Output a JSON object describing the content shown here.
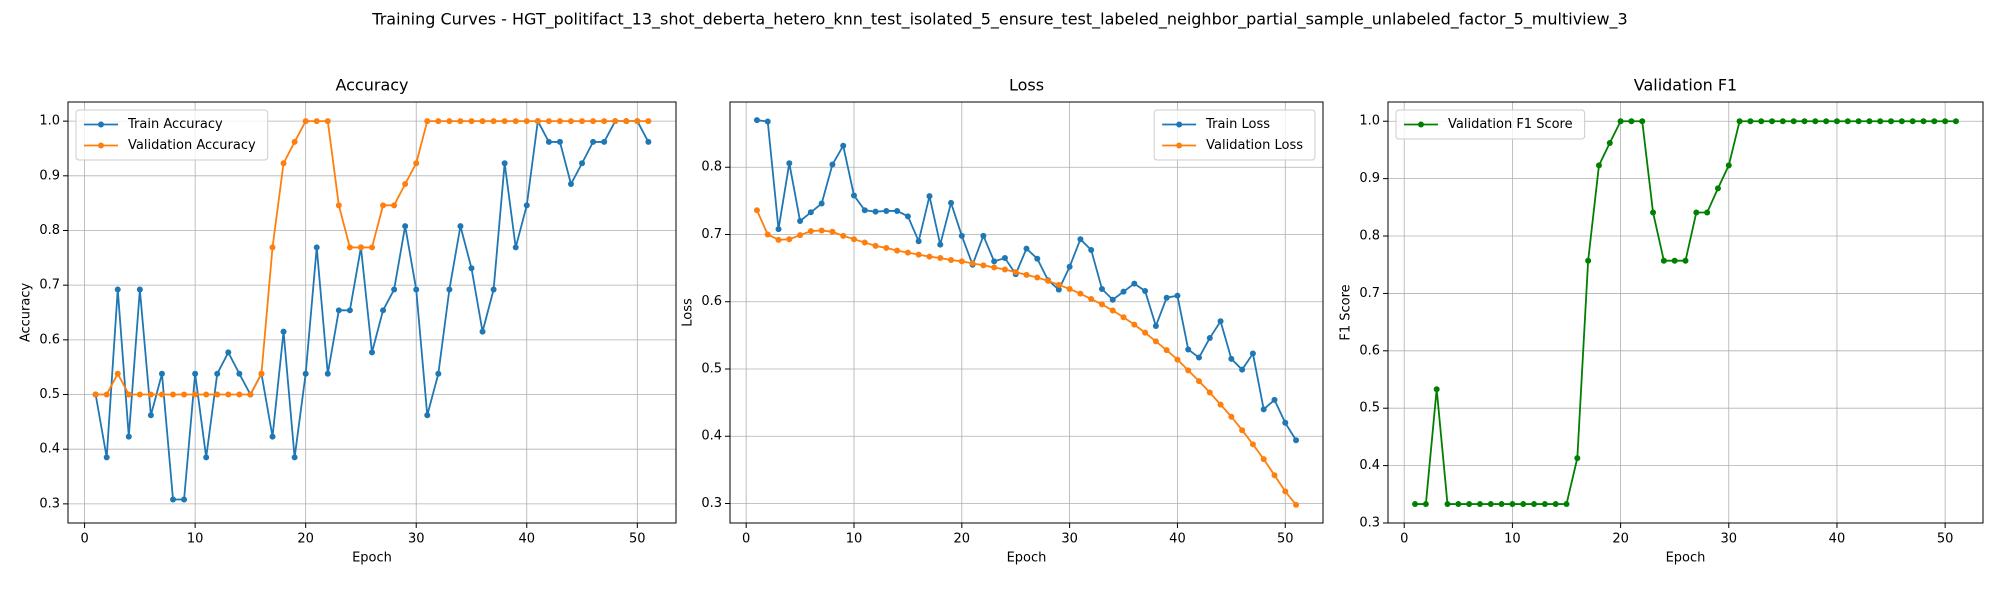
{
  "title": "Training Curves - HGT_politifact_13_shot_deberta_hetero_knn_test_isolated_5_ensure_test_labeled_neighbor_partial_sample_unlabeled_factor_5_multiview_3",
  "chart_data": [
    {
      "type": "line",
      "title": "Accuracy",
      "x_label": "Epoch",
      "y_label": "Accuracy",
      "x": [
        1,
        2,
        3,
        4,
        5,
        6,
        7,
        8,
        9,
        10,
        11,
        12,
        13,
        14,
        15,
        16,
        17,
        18,
        19,
        20,
        21,
        22,
        23,
        24,
        25,
        26,
        27,
        28,
        29,
        30,
        31,
        32,
        33,
        34,
        35,
        36,
        37,
        38,
        39,
        40,
        41,
        42,
        43,
        44,
        45,
        46,
        47,
        48,
        49,
        50,
        51
      ],
      "series": [
        {
          "name": "Train Accuracy",
          "color": "#1f77b4",
          "values": [
            0.5,
            0.385,
            0.692,
            0.423,
            0.692,
            0.462,
            0.538,
            0.308,
            0.308,
            0.538,
            0.385,
            0.538,
            0.577,
            0.538,
            0.5,
            0.538,
            0.423,
            0.615,
            0.385,
            0.538,
            0.769,
            0.538,
            0.654,
            0.654,
            0.769,
            0.577,
            0.654,
            0.692,
            0.808,
            0.692,
            0.462,
            0.538,
            0.692,
            0.808,
            0.731,
            0.615,
            0.692,
            0.923,
            0.769,
            0.846,
            1.0,
            0.962,
            0.962,
            0.885,
            0.923,
            0.962,
            0.962,
            1.0,
            1.0,
            1.0,
            0.962
          ]
        },
        {
          "name": "Validation Accuracy",
          "color": "#ff7f0e",
          "values": [
            0.5,
            0.5,
            0.538,
            0.5,
            0.5,
            0.5,
            0.5,
            0.5,
            0.5,
            0.5,
            0.5,
            0.5,
            0.5,
            0.5,
            0.5,
            0.538,
            0.769,
            0.923,
            0.962,
            1.0,
            1.0,
            1.0,
            0.846,
            0.769,
            0.769,
            0.769,
            0.846,
            0.846,
            0.885,
            0.923,
            1.0,
            1.0,
            1.0,
            1.0,
            1.0,
            1.0,
            1.0,
            1.0,
            1.0,
            1.0,
            1.0,
            1.0,
            1.0,
            1.0,
            1.0,
            1.0,
            1.0,
            1.0,
            1.0,
            1.0,
            1.0
          ]
        }
      ],
      "xlim": [
        -1.5,
        53.5
      ],
      "xticks": [
        0,
        10,
        20,
        30,
        40,
        50
      ],
      "ylim": [
        0.265,
        1.035
      ],
      "yticks": [
        0.3,
        0.4,
        0.5,
        0.6,
        0.7,
        0.8,
        0.9,
        {
          "value": 1,
          "label": "1.0"
        }
      ],
      "grid": true,
      "legend": "upper left"
    },
    {
      "type": "line",
      "title": "Loss",
      "x_label": "Epoch",
      "y_label": "Loss",
      "x": [
        1,
        2,
        3,
        4,
        5,
        6,
        7,
        8,
        9,
        10,
        11,
        12,
        13,
        14,
        15,
        16,
        17,
        18,
        19,
        20,
        21,
        22,
        23,
        24,
        25,
        26,
        27,
        28,
        29,
        30,
        31,
        32,
        33,
        34,
        35,
        36,
        37,
        38,
        39,
        40,
        41,
        42,
        43,
        44,
        45,
        46,
        47,
        48,
        49,
        50,
        51
      ],
      "series": [
        {
          "name": "Train Loss",
          "color": "#1f77b4",
          "values": [
            0.87,
            0.868,
            0.708,
            0.806,
            0.72,
            0.733,
            0.746,
            0.804,
            0.832,
            0.758,
            0.736,
            0.734,
            0.735,
            0.735,
            0.727,
            0.69,
            0.757,
            0.685,
            0.747,
            0.698,
            0.655,
            0.698,
            0.66,
            0.665,
            0.641,
            0.679,
            0.664,
            0.632,
            0.618,
            0.652,
            0.693,
            0.677,
            0.619,
            0.603,
            0.615,
            0.627,
            0.616,
            0.564,
            0.606,
            0.609,
            0.529,
            0.517,
            0.546,
            0.571,
            0.515,
            0.499,
            0.523,
            0.44,
            0.454,
            0.42,
            0.394
          ]
        },
        {
          "name": "Validation Loss",
          "color": "#ff7f0e",
          "values": [
            0.736,
            0.7,
            0.692,
            0.693,
            0.699,
            0.705,
            0.706,
            0.704,
            0.698,
            0.693,
            0.688,
            0.683,
            0.68,
            0.676,
            0.673,
            0.67,
            0.667,
            0.665,
            0.662,
            0.66,
            0.657,
            0.654,
            0.651,
            0.648,
            0.644,
            0.64,
            0.636,
            0.631,
            0.625,
            0.619,
            0.612,
            0.604,
            0.596,
            0.587,
            0.577,
            0.566,
            0.554,
            0.541,
            0.528,
            0.514,
            0.498,
            0.482,
            0.465,
            0.447,
            0.429,
            0.409,
            0.388,
            0.366,
            0.342,
            0.318,
            0.298
          ]
        }
      ],
      "xlim": [
        -1.5,
        53.5
      ],
      "xticks": [
        0,
        10,
        20,
        30,
        40,
        50
      ],
      "ylim": [
        0.271,
        0.897
      ],
      "yticks": [
        0.3,
        0.4,
        0.5,
        0.6,
        0.7,
        0.8
      ],
      "grid": true,
      "legend": "upper right"
    },
    {
      "type": "line",
      "title": "Validation F1",
      "x_label": "Epoch",
      "y_label": "F1 Score",
      "x": [
        1,
        2,
        3,
        4,
        5,
        6,
        7,
        8,
        9,
        10,
        11,
        12,
        13,
        14,
        15,
        16,
        17,
        18,
        19,
        20,
        21,
        22,
        23,
        24,
        25,
        26,
        27,
        28,
        29,
        30,
        31,
        32,
        33,
        34,
        35,
        36,
        37,
        38,
        39,
        40,
        41,
        42,
        43,
        44,
        45,
        46,
        47,
        48,
        49,
        50,
        51
      ],
      "series": [
        {
          "name": "Validation F1 Score",
          "color": "#008000",
          "values": [
            0.333,
            0.333,
            0.533,
            0.333,
            0.333,
            0.333,
            0.333,
            0.333,
            0.333,
            0.333,
            0.333,
            0.333,
            0.333,
            0.333,
            0.333,
            0.413,
            0.757,
            0.923,
            0.962,
            1.0,
            1.0,
            1.0,
            0.841,
            0.757,
            0.757,
            0.757,
            0.841,
            0.841,
            0.883,
            0.923,
            1.0,
            1.0,
            1.0,
            1.0,
            1.0,
            1.0,
            1.0,
            1.0,
            1.0,
            1.0,
            1.0,
            1.0,
            1.0,
            1.0,
            1.0,
            1.0,
            1.0,
            1.0,
            1.0,
            1.0,
            1.0
          ]
        }
      ],
      "xlim": [
        -1.5,
        53.5
      ],
      "xticks": [
        0,
        10,
        20,
        30,
        40,
        50
      ],
      "ylim": [
        0.3,
        1.0335
      ],
      "yticks": [
        0.3,
        0.4,
        0.5,
        0.6,
        0.7,
        0.8,
        0.9,
        {
          "value": 1,
          "label": "1.0"
        }
      ],
      "grid": true,
      "legend": "upper left"
    }
  ]
}
